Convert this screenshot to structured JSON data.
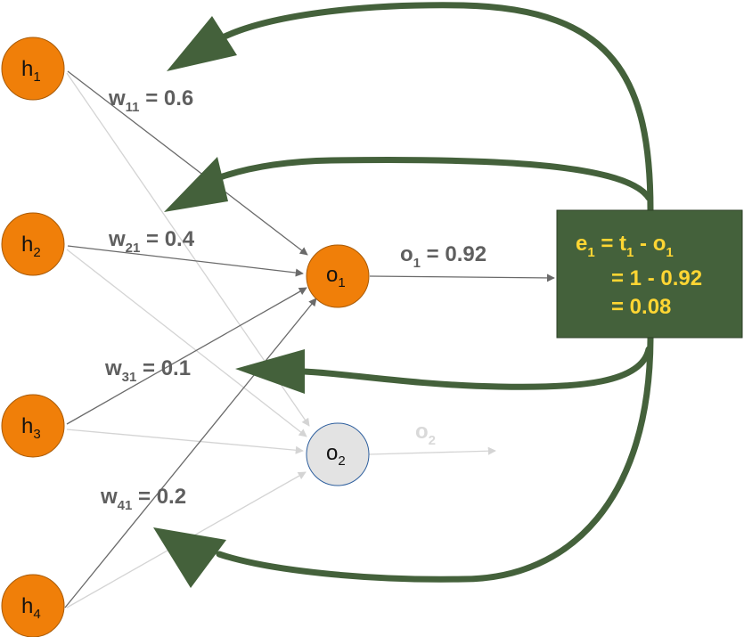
{
  "colors": {
    "hidden_node_fill": "#f07f09",
    "hidden_node_stroke": "#a85a06",
    "output_inactive_fill": "#e3e3e3",
    "output_inactive_stroke": "#2e5f9e",
    "active_edge": "#6a6a6a",
    "faded_edge": "#d4d4d4",
    "feedback_arrow": "#44613b",
    "error_box_fill": "#44613b",
    "error_box_stroke": "#2b3e26",
    "error_text": "#ffd633",
    "weight_text": "#5f5f5f",
    "faded_text": "#d9d9d9"
  },
  "hidden_nodes": [
    {
      "base": "h",
      "sub": "1"
    },
    {
      "base": "h",
      "sub": "2"
    },
    {
      "base": "h",
      "sub": "3"
    },
    {
      "base": "h",
      "sub": "4"
    }
  ],
  "output_nodes": [
    {
      "base": "o",
      "sub": "1"
    },
    {
      "base": "o",
      "sub": "2"
    }
  ],
  "weights": [
    {
      "base": "w",
      "sub": "11",
      "value": " = 0.6"
    },
    {
      "base": "w",
      "sub": "21",
      "value": " = 0.4"
    },
    {
      "base": "w",
      "sub": "31",
      "value": " = 0.1"
    },
    {
      "base": "w",
      "sub": "41",
      "value": " = 0.2"
    }
  ],
  "output_value": {
    "base": "o",
    "sub": "1",
    "value": " = 0.92"
  },
  "output2_label": {
    "base": "o",
    "sub": "2"
  },
  "error_box": {
    "line1": {
      "e": "e",
      "e_sub": "1",
      "eq": " = t",
      "t_sub": "1",
      "minus": " -  o",
      "o_sub": "1"
    },
    "line2": "= 1 - 0.92",
    "line3": "= 0.08"
  }
}
